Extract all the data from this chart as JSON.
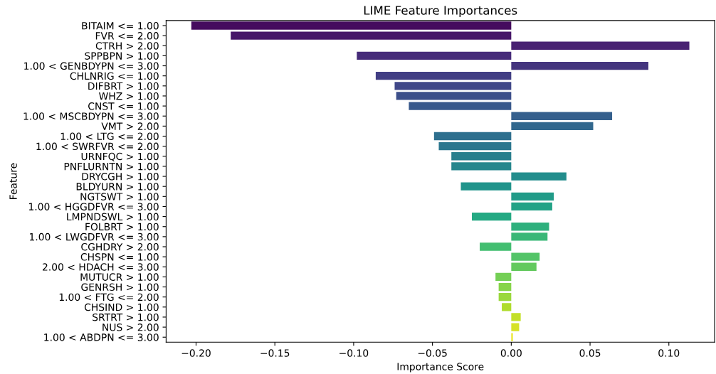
{
  "chart_data": {
    "type": "bar",
    "orientation": "horizontal",
    "title": "LIME Feature Importances",
    "xlabel": "Importance Score",
    "ylabel": "Feature",
    "categories": [
      "BITAIM <= 1.00",
      "FVR <= 2.00",
      "CTRH > 2.00",
      "SPPBPN > 1.00",
      "1.00 < GENBDYPN <= 3.00",
      "CHLNRIG <= 1.00",
      "DIFBRT > 1.00",
      "WHZ > 1.00",
      "CNST <= 1.00",
      "1.00 < MSCBDYPN <= 3.00",
      "VMT > 2.00",
      "1.00 < LTG <= 2.00",
      "1.00 < SWRFVR <= 2.00",
      "URNFQC > 1.00",
      "PNFLURNTN > 1.00",
      "DRYCGH > 1.00",
      "BLDYURN > 1.00",
      "NGTSWT > 1.00",
      "1.00 < HGGDFVR <= 3.00",
      "LMPNDSWL > 1.00",
      "FOLBRT > 1.00",
      "1.00 < LWGDFVR <= 3.00",
      "CGHDRY > 2.00",
      "CHSPN <= 1.00",
      "2.00 < HDACH <= 3.00",
      "MUTUCR > 1.00",
      "GENRSH > 1.00",
      "1.00 < FTG <= 2.00",
      "CHSIND > 1.00",
      "SRTRT > 1.00",
      "NUS > 2.00",
      "1.00 < ABDPN <= 3.00"
    ],
    "values": [
      -0.203,
      -0.178,
      0.113,
      -0.098,
      0.087,
      -0.086,
      -0.074,
      -0.073,
      -0.065,
      0.064,
      0.052,
      -0.049,
      -0.046,
      -0.038,
      -0.038,
      0.035,
      -0.032,
      0.027,
      0.026,
      -0.025,
      0.024,
      0.023,
      -0.02,
      0.018,
      0.016,
      -0.01,
      -0.008,
      -0.008,
      -0.006,
      0.006,
      0.005,
      0.001
    ],
    "colors": [
      "#450b5e",
      "#461668",
      "#482172",
      "#462b79",
      "#44357e",
      "#423e84",
      "#404788",
      "#3c4f8a",
      "#38588b",
      "#35608d",
      "#31678d",
      "#2e6f8e",
      "#2b768e",
      "#287e8d",
      "#25868d",
      "#228d8c",
      "#21948b",
      "#219b88",
      "#22a286",
      "#24a983",
      "#2eb07d",
      "#39b777",
      "#43be71",
      "#53c468",
      "#63c95e",
      "#74cf55",
      "#86d449",
      "#9ad83c",
      "#afdc2d",
      "#c3e026",
      "#d6e226",
      "#eae525"
    ],
    "xlim": [
      -0.219,
      0.129
    ],
    "xticks": [
      {
        "value": -0.2,
        "label": "−0.20"
      },
      {
        "value": -0.15,
        "label": "−0.15"
      },
      {
        "value": -0.1,
        "label": "−0.10"
      },
      {
        "value": -0.05,
        "label": "−0.05"
      },
      {
        "value": 0,
        "label": "0.00"
      },
      {
        "value": 0.05,
        "label": "0.05"
      },
      {
        "value": 0.1,
        "label": "0.10"
      }
    ],
    "grid": false,
    "legend": false
  }
}
